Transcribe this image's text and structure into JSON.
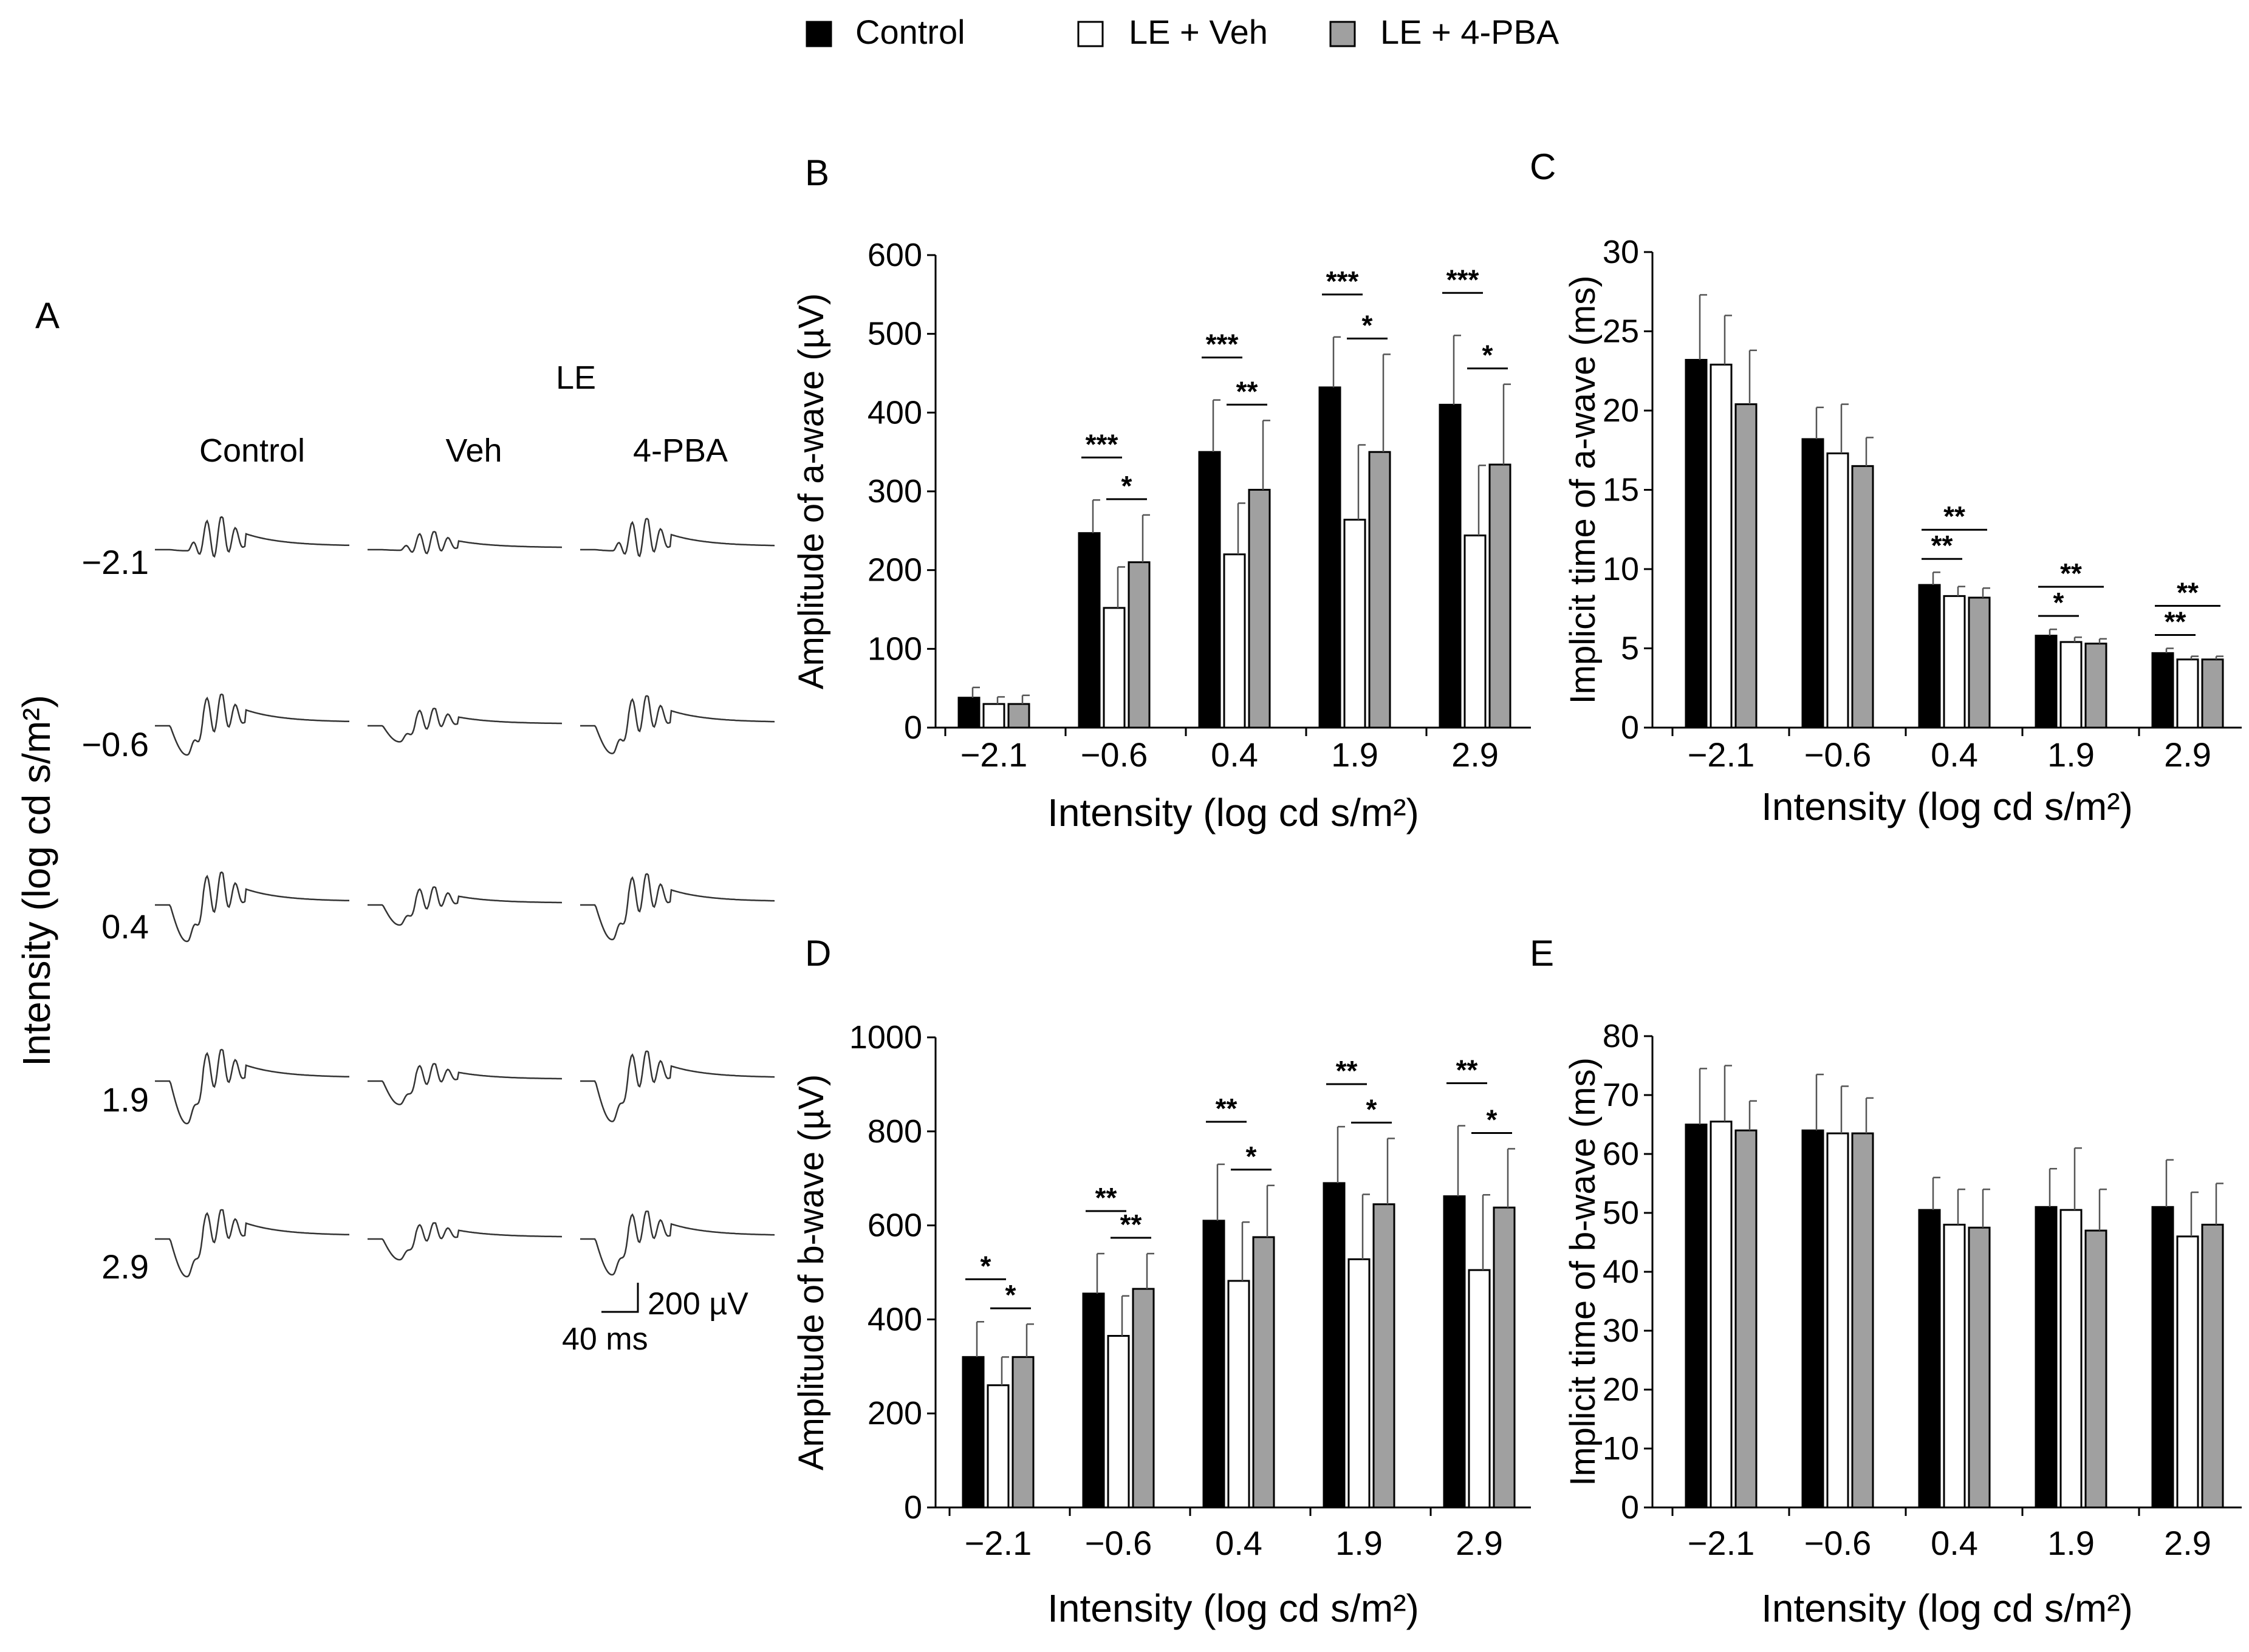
{
  "legend": {
    "items": [
      {
        "label": "Control",
        "color": "#000000"
      },
      {
        "label": "LE + Veh",
        "color": "#ffffff"
      },
      {
        "label": "LE + 4-PBA",
        "color": "#a0a0a0"
      }
    ]
  },
  "panel_a": {
    "label": "A",
    "group_label": "LE",
    "columns": [
      "Control",
      "Veh",
      "4-PBA"
    ],
    "rows": [
      "−2.1",
      "−0.6",
      "0.4",
      "1.9",
      "2.9"
    ],
    "ylabel": "Intensity (log cd s/m²)",
    "scale_v": "200 µV",
    "scale_t": "40 ms"
  },
  "chart_data": [
    {
      "panel": "B",
      "type": "bar",
      "title": "",
      "xlabel": "Intensity (log cd s/m²)",
      "ylabel": "Amplitude of a-wave (µV)",
      "categories": [
        "−2.1",
        "−0.6",
        "0.4",
        "1.9",
        "2.9"
      ],
      "ylim": [
        0,
        600
      ],
      "yticks": [
        0,
        100,
        200,
        300,
        400,
        500,
        600
      ],
      "series": [
        {
          "name": "Control",
          "values": [
            38,
            247,
            350,
            432,
            410
          ],
          "errors": [
            13,
            42,
            66,
            64,
            88
          ]
        },
        {
          "name": "LE + Veh",
          "values": [
            30,
            152,
            220,
            264,
            244
          ],
          "errors": [
            9,
            52,
            65,
            95,
            89
          ]
        },
        {
          "name": "LE + 4-PBA",
          "values": [
            30,
            210,
            302,
            350,
            334
          ],
          "errors": [
            11,
            60,
            88,
            124,
            102
          ]
        }
      ],
      "significance": [
        {
          "cat": 1,
          "from": 0,
          "to": 1,
          "label": "***"
        },
        {
          "cat": 1,
          "from": 1,
          "to": 2,
          "label": "*"
        },
        {
          "cat": 2,
          "from": 0,
          "to": 1,
          "label": "***"
        },
        {
          "cat": 2,
          "from": 1,
          "to": 2,
          "label": "**"
        },
        {
          "cat": 3,
          "from": 0,
          "to": 1,
          "label": "***"
        },
        {
          "cat": 3,
          "from": 1,
          "to": 2,
          "label": "*"
        },
        {
          "cat": 4,
          "from": 0,
          "to": 1,
          "label": "***"
        },
        {
          "cat": 4,
          "from": 1,
          "to": 2,
          "label": "*"
        }
      ]
    },
    {
      "panel": "C",
      "type": "bar",
      "title": "",
      "xlabel": "Intensity (log cd s/m²)",
      "ylabel": "Implicit time of a-wave (ms)",
      "categories": [
        "−2.1",
        "−0.6",
        "0.4",
        "1.9",
        "2.9"
      ],
      "ylim": [
        0,
        30
      ],
      "yticks": [
        0,
        5,
        10,
        15,
        20,
        25,
        30
      ],
      "series": [
        {
          "name": "Control",
          "values": [
            23.2,
            18.2,
            9.0,
            5.8,
            4.7
          ],
          "errors": [
            4.1,
            2.0,
            0.8,
            0.4,
            0.3
          ]
        },
        {
          "name": "LE + Veh",
          "values": [
            22.9,
            17.3,
            8.3,
            5.4,
            4.3
          ],
          "errors": [
            3.1,
            3.1,
            0.6,
            0.3,
            0.2
          ]
        },
        {
          "name": "LE + 4-PBA",
          "values": [
            20.4,
            16.5,
            8.2,
            5.3,
            4.3
          ],
          "errors": [
            3.4,
            1.8,
            0.6,
            0.3,
            0.2
          ]
        }
      ],
      "significance": [
        {
          "cat": 2,
          "from": 0,
          "to": 1,
          "label": "**"
        },
        {
          "cat": 2,
          "from": 0,
          "to": 2,
          "label": "**"
        },
        {
          "cat": 3,
          "from": 0,
          "to": 1,
          "label": "*"
        },
        {
          "cat": 3,
          "from": 0,
          "to": 2,
          "label": "**"
        },
        {
          "cat": 4,
          "from": 0,
          "to": 1,
          "label": "**"
        },
        {
          "cat": 4,
          "from": 0,
          "to": 2,
          "label": "**"
        }
      ]
    },
    {
      "panel": "D",
      "type": "bar",
      "title": "",
      "xlabel": "Intensity (log cd s/m²)",
      "ylabel": "Amplitude of b-wave (µV)",
      "categories": [
        "−2.1",
        "−0.6",
        "0.4",
        "1.9",
        "2.9"
      ],
      "ylim": [
        0,
        1000
      ],
      "yticks": [
        0,
        200,
        400,
        600,
        800,
        1000
      ],
      "series": [
        {
          "name": "Control",
          "values": [
            320,
            455,
            610,
            690,
            662
          ],
          "errors": [
            75,
            85,
            120,
            120,
            150
          ]
        },
        {
          "name": "LE + Veh",
          "values": [
            260,
            365,
            482,
            528,
            505
          ],
          "errors": [
            60,
            85,
            125,
            138,
            160
          ]
        },
        {
          "name": "LE + 4-PBA",
          "values": [
            320,
            465,
            575,
            645,
            638
          ],
          "errors": [
            70,
            75,
            110,
            140,
            125
          ]
        }
      ],
      "significance": [
        {
          "cat": 0,
          "from": 0,
          "to": 1,
          "label": "*"
        },
        {
          "cat": 0,
          "from": 1,
          "to": 2,
          "label": "*"
        },
        {
          "cat": 1,
          "from": 0,
          "to": 1,
          "label": "**"
        },
        {
          "cat": 1,
          "from": 1,
          "to": 2,
          "label": "**"
        },
        {
          "cat": 2,
          "from": 0,
          "to": 1,
          "label": "**"
        },
        {
          "cat": 2,
          "from": 1,
          "to": 2,
          "label": "*"
        },
        {
          "cat": 3,
          "from": 0,
          "to": 1,
          "label": "**"
        },
        {
          "cat": 3,
          "from": 1,
          "to": 2,
          "label": "*"
        },
        {
          "cat": 4,
          "from": 0,
          "to": 1,
          "label": "**"
        },
        {
          "cat": 4,
          "from": 1,
          "to": 2,
          "label": "*"
        }
      ]
    },
    {
      "panel": "E",
      "type": "bar",
      "title": "",
      "xlabel": "Intensity (log cd s/m²)",
      "ylabel": "Implicit time of b-wave (ms)",
      "categories": [
        "−2.1",
        "−0.6",
        "0.4",
        "1.9",
        "2.9"
      ],
      "ylim": [
        0,
        80
      ],
      "yticks": [
        0,
        10,
        20,
        30,
        40,
        50,
        60,
        70,
        80
      ],
      "series": [
        {
          "name": "Control",
          "values": [
            65,
            64,
            50.5,
            51,
            51
          ],
          "errors": [
            9.5,
            9.5,
            5.5,
            6.5,
            8
          ]
        },
        {
          "name": "LE + Veh",
          "values": [
            65.5,
            63.5,
            48,
            50.5,
            46
          ],
          "errors": [
            9.5,
            8,
            6,
            10.5,
            7.5
          ]
        },
        {
          "name": "LE + 4-PBA",
          "values": [
            64,
            63.5,
            47.5,
            47,
            48
          ],
          "errors": [
            5,
            6,
            6.5,
            7,
            7
          ]
        }
      ],
      "significance": []
    }
  ]
}
